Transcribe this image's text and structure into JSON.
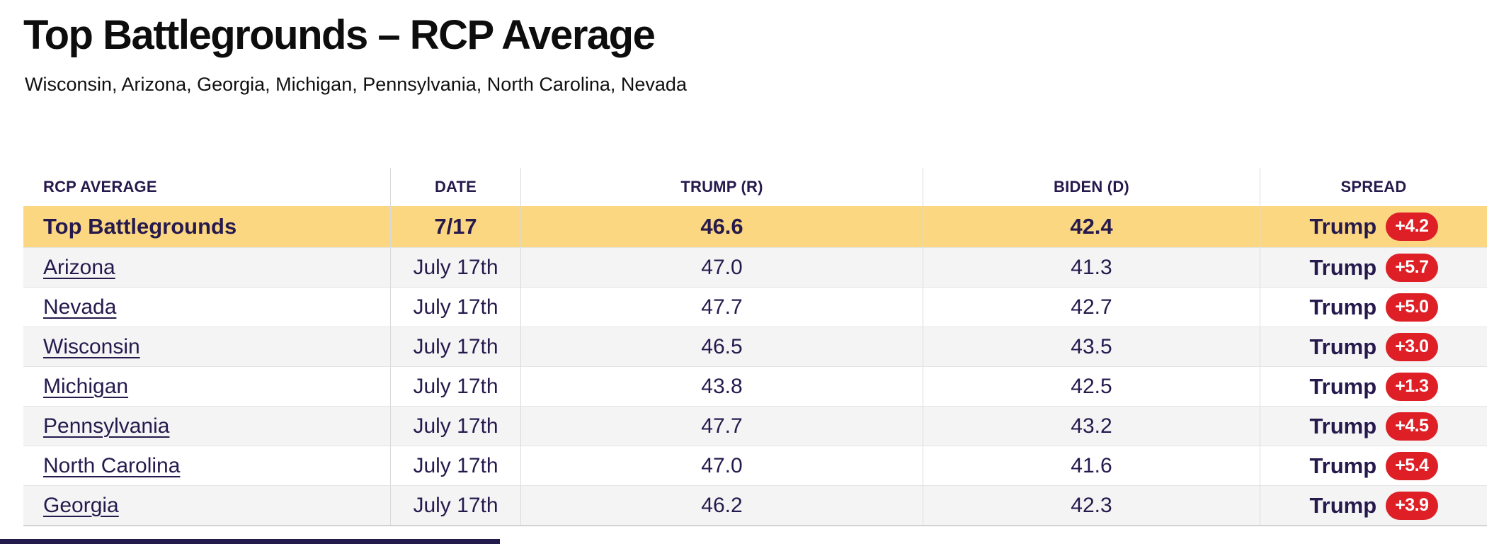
{
  "page": {
    "title": "Top Battlegrounds – RCP Average",
    "subtitle": "Wisconsin, Arizona, Georgia, Michigan, Pennsylvania, North Carolina, Nevada"
  },
  "colors": {
    "highlight_row": "#fcd782",
    "spread_badge": "#de1f26",
    "text_dark_purple": "#261a4d",
    "row_alt_gray": "#f4f4f5"
  },
  "table": {
    "columns": {
      "c0": "RCP AVERAGE",
      "c1": "DATE",
      "c2": "TRUMP (R)",
      "c3": "BIDEN (D)",
      "c4": "SPREAD"
    },
    "summary": {
      "label": "Top Battlegrounds",
      "date": "7/17",
      "trump": "46.6",
      "biden": "42.4",
      "spread_leader": "Trump",
      "spread_value": "+4.2"
    },
    "rows": [
      {
        "state": "Arizona",
        "date": "July 17th",
        "trump": "47.0",
        "biden": "41.3",
        "spread_leader": "Trump",
        "spread_value": "+5.7"
      },
      {
        "state": "Nevada",
        "date": "July 17th",
        "trump": "47.7",
        "biden": "42.7",
        "spread_leader": "Trump",
        "spread_value": "+5.0"
      },
      {
        "state": "Wisconsin",
        "date": "July 17th",
        "trump": "46.5",
        "biden": "43.5",
        "spread_leader": "Trump",
        "spread_value": "+3.0"
      },
      {
        "state": "Michigan",
        "date": "July 17th",
        "trump": "43.8",
        "biden": "42.5",
        "spread_leader": "Trump",
        "spread_value": "+1.3"
      },
      {
        "state": "Pennsylvania",
        "date": "July 17th",
        "trump": "47.7",
        "biden": "43.2",
        "spread_leader": "Trump",
        "spread_value": "+4.5"
      },
      {
        "state": "North Carolina",
        "date": "July 17th",
        "trump": "47.0",
        "biden": "41.6",
        "spread_leader": "Trump",
        "spread_value": "+5.4"
      },
      {
        "state": "Georgia",
        "date": "July 17th",
        "trump": "46.2",
        "biden": "42.3",
        "spread_leader": "Trump",
        "spread_value": "+3.9"
      }
    ]
  }
}
